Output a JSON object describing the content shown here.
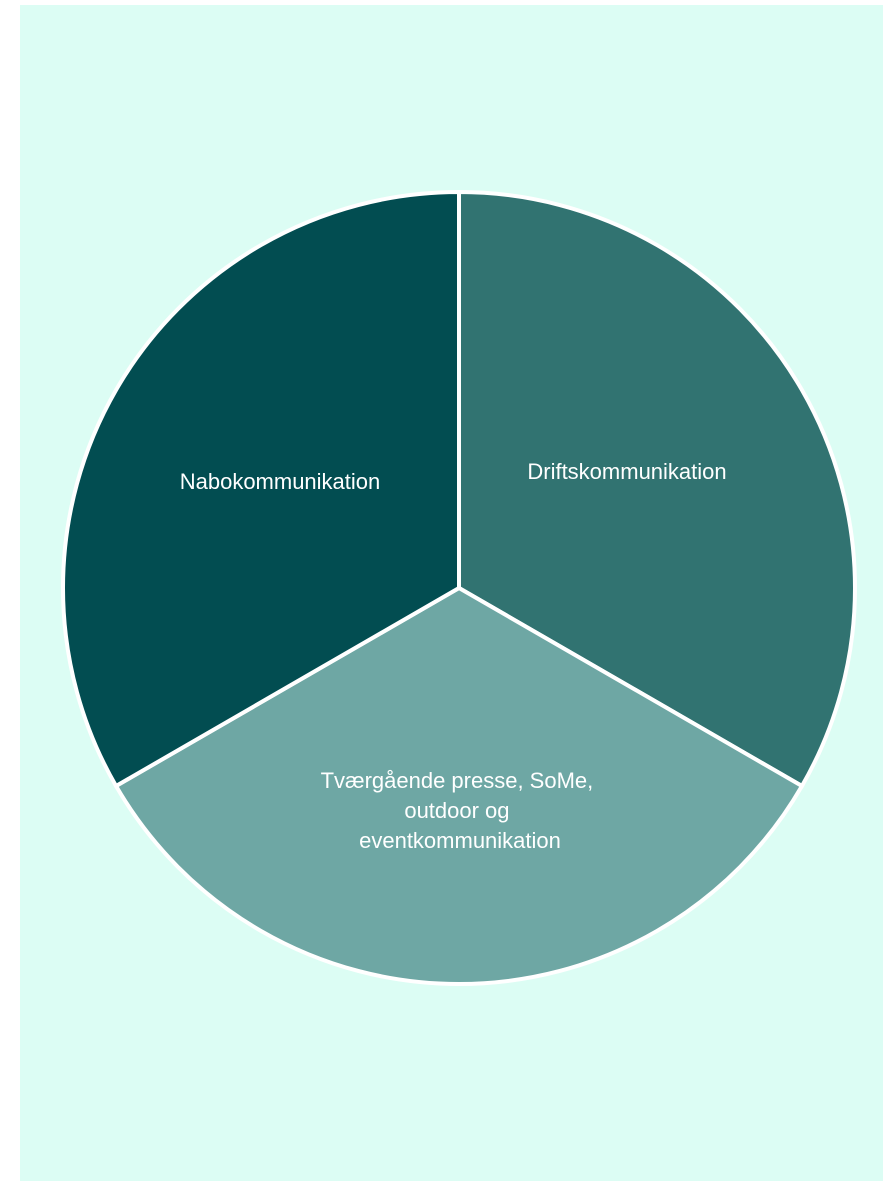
{
  "diagram": {
    "type": "pie",
    "segments": [
      {
        "id": "drift",
        "label": "Driftskommunikation",
        "share": 1,
        "color": "#317371"
      },
      {
        "id": "tvaer",
        "label": "Tværgående presse, SoMe, outdoor og eventkommunikation",
        "lines": [
          "Tværgående presse, SoMe,",
          "outdoor og",
          "eventkommunikation"
        ],
        "share": 1,
        "color": "#6ea7a4"
      },
      {
        "id": "nabo",
        "label": "Nabokommunikation",
        "share": 1,
        "color": "#024d51"
      }
    ],
    "background_color": "#dcfdf4",
    "separator_color": "#ffffff"
  }
}
